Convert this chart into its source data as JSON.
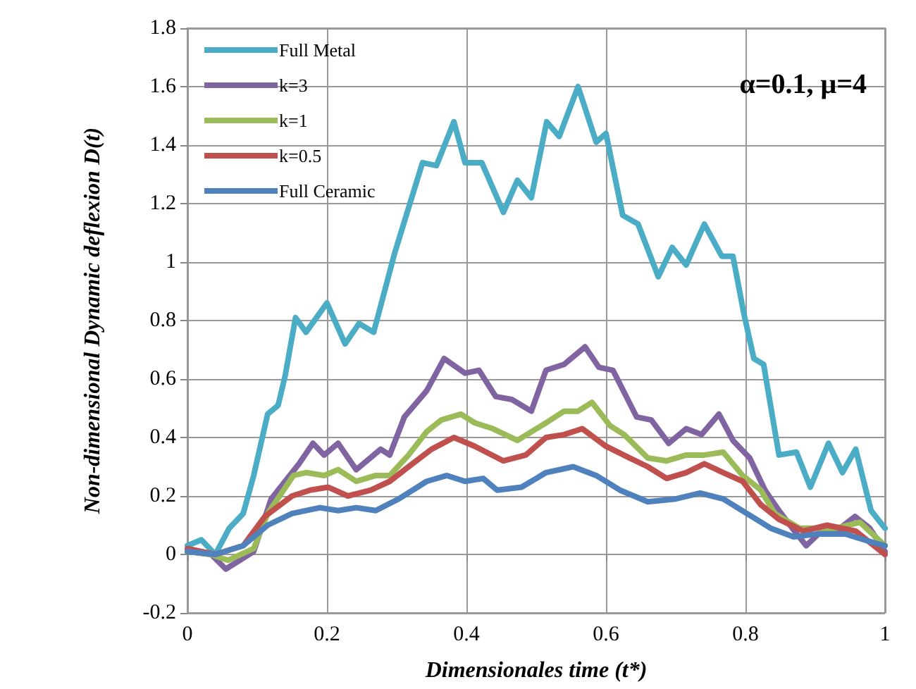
{
  "chart_data": {
    "type": "line",
    "xlabel": "Dimensionales time (t*)",
    "ylabel": "Non-dimensional Dynamic deflexion D(t)",
    "annotations": [
      "α=0.1, μ=4"
    ],
    "xlim": [
      0,
      1
    ],
    "xticks": [
      0,
      0.2,
      0.4,
      0.6,
      0.8,
      1
    ],
    "ylim": [
      -0.2,
      1.8
    ],
    "yticks": [
      -0.2,
      0,
      0.2,
      0.4,
      0.6,
      0.8,
      1,
      1.2,
      1.4,
      1.6,
      1.8
    ],
    "grid": true,
    "legend": "top left",
    "series": [
      {
        "name": "Full Metal",
        "color": "#4bacc6",
        "x": [
          0,
          0.02,
          0.04,
          0.06,
          0.08,
          0.095,
          0.115,
          0.13,
          0.14,
          0.155,
          0.17,
          0.2,
          0.226,
          0.246,
          0.267,
          0.287,
          0.297,
          0.337,
          0.357,
          0.382,
          0.398,
          0.422,
          0.453,
          0.473,
          0.493,
          0.515,
          0.533,
          0.56,
          0.586,
          0.6,
          0.624,
          0.646,
          0.675,
          0.695,
          0.715,
          0.741,
          0.766,
          0.782,
          0.798,
          0.812,
          0.826,
          0.848,
          0.873,
          0.893,
          0.919,
          0.939,
          0.958,
          0.98,
          1
        ],
        "values": [
          0.03,
          0.05,
          0,
          0.09,
          0.14,
          0.27,
          0.48,
          0.51,
          0.61,
          0.81,
          0.76,
          0.86,
          0.72,
          0.79,
          0.76,
          0.94,
          1.03,
          1.34,
          1.33,
          1.48,
          1.34,
          1.34,
          1.17,
          1.28,
          1.22,
          1.48,
          1.43,
          1.6,
          1.41,
          1.44,
          1.16,
          1.13,
          0.95,
          1.05,
          0.99,
          1.13,
          1.02,
          1.02,
          0.82,
          0.67,
          0.65,
          0.34,
          0.35,
          0.23,
          0.38,
          0.28,
          0.36,
          0.15,
          0.09
        ]
      },
      {
        "name": "k=3",
        "color": "#8064a2",
        "x": [
          0,
          0.034,
          0.055,
          0.095,
          0.12,
          0.16,
          0.18,
          0.196,
          0.216,
          0.242,
          0.277,
          0.29,
          0.311,
          0.343,
          0.368,
          0.398,
          0.418,
          0.442,
          0.465,
          0.493,
          0.514,
          0.54,
          0.57,
          0.59,
          0.61,
          0.644,
          0.665,
          0.69,
          0.715,
          0.737,
          0.762,
          0.782,
          0.806,
          0.828,
          0.848,
          0.867,
          0.887,
          0.909,
          0.93,
          0.957,
          0.978,
          1
        ],
        "values": [
          0.01,
          0,
          -0.05,
          0.01,
          0.19,
          0.31,
          0.38,
          0.34,
          0.38,
          0.29,
          0.36,
          0.34,
          0.47,
          0.56,
          0.67,
          0.62,
          0.63,
          0.54,
          0.53,
          0.49,
          0.63,
          0.65,
          0.71,
          0.64,
          0.63,
          0.47,
          0.46,
          0.38,
          0.43,
          0.41,
          0.48,
          0.39,
          0.33,
          0.22,
          0.15,
          0.09,
          0.03,
          0.08,
          0.08,
          0.13,
          0.09,
          0.01
        ]
      },
      {
        "name": "k=1",
        "color": "#9bbb59",
        "x": [
          0,
          0.034,
          0.058,
          0.095,
          0.115,
          0.152,
          0.17,
          0.196,
          0.216,
          0.242,
          0.27,
          0.29,
          0.317,
          0.343,
          0.364,
          0.392,
          0.412,
          0.438,
          0.473,
          0.514,
          0.54,
          0.56,
          0.58,
          0.606,
          0.626,
          0.66,
          0.687,
          0.715,
          0.741,
          0.768,
          0.796,
          0.822,
          0.842,
          0.877,
          0.903,
          0.93,
          0.964,
          1
        ],
        "values": [
          0.01,
          0,
          -0.02,
          0.02,
          0.14,
          0.27,
          0.28,
          0.27,
          0.29,
          0.25,
          0.27,
          0.27,
          0.34,
          0.42,
          0.46,
          0.48,
          0.45,
          0.43,
          0.39,
          0.45,
          0.49,
          0.49,
          0.52,
          0.44,
          0.41,
          0.33,
          0.32,
          0.34,
          0.34,
          0.35,
          0.27,
          0.22,
          0.14,
          0.09,
          0.09,
          0.09,
          0.11,
          0.03
        ]
      },
      {
        "name": "k=0.5",
        "color": "#c0504d",
        "x": [
          0,
          0.04,
          0.08,
          0.111,
          0.15,
          0.176,
          0.202,
          0.23,
          0.263,
          0.29,
          0.317,
          0.35,
          0.382,
          0.412,
          0.453,
          0.485,
          0.514,
          0.54,
          0.566,
          0.6,
          0.634,
          0.66,
          0.687,
          0.715,
          0.741,
          0.768,
          0.796,
          0.822,
          0.848,
          0.883,
          0.917,
          0.958,
          1
        ],
        "values": [
          0.02,
          0,
          0.03,
          0.13,
          0.2,
          0.22,
          0.23,
          0.2,
          0.22,
          0.25,
          0.3,
          0.36,
          0.4,
          0.37,
          0.32,
          0.34,
          0.4,
          0.41,
          0.43,
          0.37,
          0.33,
          0.3,
          0.26,
          0.28,
          0.31,
          0.28,
          0.25,
          0.17,
          0.12,
          0.08,
          0.1,
          0.08,
          0
        ]
      },
      {
        "name": "Full Ceramic",
        "color": "#4f81bd",
        "x": [
          0,
          0.04,
          0.08,
          0.115,
          0.15,
          0.19,
          0.216,
          0.242,
          0.27,
          0.303,
          0.343,
          0.372,
          0.398,
          0.424,
          0.444,
          0.479,
          0.514,
          0.553,
          0.586,
          0.62,
          0.66,
          0.7,
          0.735,
          0.768,
          0.802,
          0.836,
          0.869,
          0.903,
          0.943,
          0.984,
          1
        ],
        "values": [
          0.01,
          0,
          0.03,
          0.1,
          0.14,
          0.16,
          0.15,
          0.16,
          0.15,
          0.19,
          0.25,
          0.27,
          0.25,
          0.26,
          0.22,
          0.23,
          0.28,
          0.3,
          0.27,
          0.22,
          0.18,
          0.19,
          0.21,
          0.19,
          0.14,
          0.09,
          0.06,
          0.07,
          0.07,
          0.04,
          0.03
        ]
      }
    ]
  }
}
